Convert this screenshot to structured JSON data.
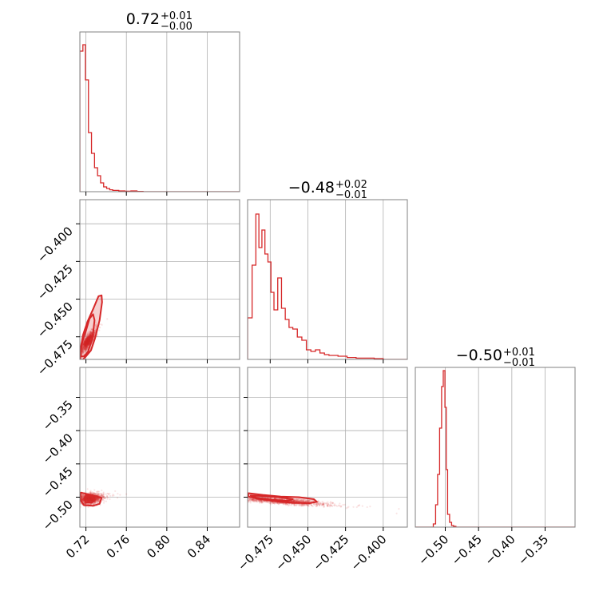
{
  "colors": {
    "series": "#d62728",
    "grid": "#b0b0b0",
    "frame": "#808080"
  },
  "chart_data": {
    "type": "corner",
    "parameters": [
      "p0",
      "p1",
      "p2"
    ],
    "titles": [
      {
        "main": "0.72",
        "upper": "+0.01",
        "lower": "−0.00"
      },
      {
        "main": "−0.48",
        "upper": "+0.02",
        "lower": "−0.01"
      },
      {
        "main": "−0.50",
        "upper": "+0.01",
        "lower": "−0.01"
      }
    ],
    "ranges": [
      [
        0.714,
        0.872
      ],
      [
        -0.49,
        -0.384
      ],
      [
        -0.545,
        -0.305
      ]
    ],
    "tick_values": [
      [
        0.72,
        0.76,
        0.8,
        0.84
      ],
      [
        -0.475,
        -0.45,
        -0.425,
        -0.4
      ],
      [
        -0.5,
        -0.45,
        -0.4,
        -0.35
      ]
    ],
    "tick_labels": [
      [
        "0.72",
        "0.76",
        "0.80",
        "0.84"
      ],
      [
        "−0.475",
        "−0.450",
        "−0.425",
        "−0.400"
      ],
      [
        "−0.50",
        "−0.45",
        "−0.40",
        "−0.35"
      ]
    ],
    "grid": true,
    "histograms": [
      {
        "param": 0,
        "edges": [
          0.714,
          0.717,
          0.7195,
          0.7225,
          0.7255,
          0.7285,
          0.7315,
          0.7345,
          0.7375,
          0.7405,
          0.7435,
          0.7465,
          0.7525,
          0.7585,
          0.7645,
          0.7705,
          0.7765,
          0.872
        ],
        "counts": [
          0.88,
          0.92,
          0.7,
          0.37,
          0.24,
          0.15,
          0.1,
          0.055,
          0.03,
          0.02,
          0.012,
          0.008,
          0.005,
          0.003,
          0.005,
          0.002,
          0.0
        ]
      },
      {
        "param": 1,
        "edges": [
          -0.49,
          -0.487,
          -0.4845,
          -0.4825,
          -0.4805,
          -0.4785,
          -0.4765,
          -0.4745,
          -0.4725,
          -0.47,
          -0.4675,
          -0.465,
          -0.4625,
          -0.46,
          -0.457,
          -0.454,
          -0.451,
          -0.448,
          -0.445,
          -0.442,
          -0.439,
          -0.436,
          -0.43,
          -0.424,
          -0.418,
          -0.412,
          -0.406,
          -0.4,
          -0.384
        ],
        "counts": [
          0.26,
          0.59,
          0.91,
          0.7,
          0.81,
          0.66,
          0.61,
          0.42,
          0.31,
          0.51,
          0.32,
          0.25,
          0.2,
          0.19,
          0.14,
          0.12,
          0.06,
          0.05,
          0.06,
          0.04,
          0.03,
          0.025,
          0.02,
          0.012,
          0.008,
          0.008,
          0.005,
          0.0
        ]
      },
      {
        "param": 2,
        "edges": [
          -0.545,
          -0.518,
          -0.5145,
          -0.5115,
          -0.5085,
          -0.5055,
          -0.503,
          -0.5005,
          -0.4985,
          -0.4965,
          -0.4935,
          -0.4905,
          -0.4875,
          -0.484,
          -0.305
        ],
        "counts": [
          0.0,
          0.02,
          0.14,
          0.33,
          0.62,
          0.88,
          0.98,
          0.75,
          0.36,
          0.08,
          0.03,
          0.01,
          0.005,
          0.0
        ]
      }
    ],
    "scatter_2d": [
      {
        "x_param": 0,
        "y_param": 1,
        "center": [
          0.722,
          -0.478
        ],
        "slope": 1.0,
        "spread_major": 0.004,
        "spread_minor": 0.0015,
        "n_points": 1400
      },
      {
        "x_param": 0,
        "y_param": 2,
        "center": [
          0.724,
          -0.502
        ],
        "slope": 0.3,
        "spread_major": 0.005,
        "spread_minor": 0.004,
        "n_points": 1400
      },
      {
        "x_param": 1,
        "y_param": 2,
        "center": [
          -0.468,
          -0.506
        ],
        "slope": -0.16,
        "spread_major": 0.014,
        "spread_minor": 0.002,
        "n_points": 1400
      }
    ],
    "contours_2d": [
      {
        "x_param": 0,
        "y_param": 1,
        "levels": [
          {
            "shaded": true,
            "points": [
              [
                0.7145,
                -0.4905
              ],
              [
                0.7165,
                -0.4905
              ],
              [
                0.72,
                -0.488
              ],
              [
                0.725,
                -0.484
              ],
              [
                0.729,
                -0.476
              ],
              [
                0.7335,
                -0.464
              ],
              [
                0.736,
                -0.452
              ],
              [
                0.7355,
                -0.4475
              ],
              [
                0.7325,
                -0.448
              ],
              [
                0.7275,
                -0.456
              ],
              [
                0.7215,
                -0.465
              ],
              [
                0.717,
                -0.474
              ],
              [
                0.7145,
                -0.484
              ]
            ]
          },
          {
            "shaded": false,
            "points": [
              [
                0.715,
                -0.488
              ],
              [
                0.718,
                -0.488
              ],
              [
                0.722,
                -0.485
              ],
              [
                0.7265,
                -0.476
              ],
              [
                0.7285,
                -0.464
              ],
              [
                0.727,
                -0.46
              ],
              [
                0.7235,
                -0.463
              ],
              [
                0.72,
                -0.471
              ],
              [
                0.7165,
                -0.478
              ],
              [
                0.715,
                -0.484
              ]
            ]
          }
        ]
      },
      {
        "x_param": 0,
        "y_param": 2,
        "levels": [
          {
            "shaded": true,
            "points": [
              [
                0.715,
                -0.493
              ],
              [
                0.723,
                -0.496
              ],
              [
                0.731,
                -0.499
              ],
              [
                0.7355,
                -0.501
              ],
              [
                0.7335,
                -0.51
              ],
              [
                0.727,
                -0.513
              ],
              [
                0.718,
                -0.512
              ],
              [
                0.7148,
                -0.505
              ]
            ]
          },
          {
            "shaded": false,
            "points": [
              [
                0.72,
                -0.4975
              ],
              [
                0.726,
                -0.499
              ],
              [
                0.729,
                -0.504
              ],
              [
                0.726,
                -0.508
              ],
              [
                0.72,
                -0.508
              ],
              [
                0.718,
                -0.502
              ]
            ]
          }
        ]
      },
      {
        "x_param": 1,
        "y_param": 2,
        "levels": [
          {
            "shaded": true,
            "points": [
              [
                -0.4895,
                -0.494
              ],
              [
                -0.48,
                -0.4965
              ],
              [
                -0.468,
                -0.499
              ],
              [
                -0.456,
                -0.5
              ],
              [
                -0.446,
                -0.503
              ],
              [
                -0.444,
                -0.507
              ],
              [
                -0.449,
                -0.509
              ],
              [
                -0.46,
                -0.5085
              ],
              [
                -0.472,
                -0.506
              ],
              [
                -0.484,
                -0.502
              ],
              [
                -0.4895,
                -0.499
              ]
            ]
          },
          {
            "shaded": false,
            "points": [
              [
                -0.488,
                -0.4975
              ],
              [
                -0.478,
                -0.4985
              ],
              [
                -0.468,
                -0.5005
              ],
              [
                -0.46,
                -0.503
              ],
              [
                -0.464,
                -0.5055
              ],
              [
                -0.474,
                -0.504
              ],
              [
                -0.484,
                -0.501
              ]
            ]
          }
        ]
      }
    ]
  }
}
